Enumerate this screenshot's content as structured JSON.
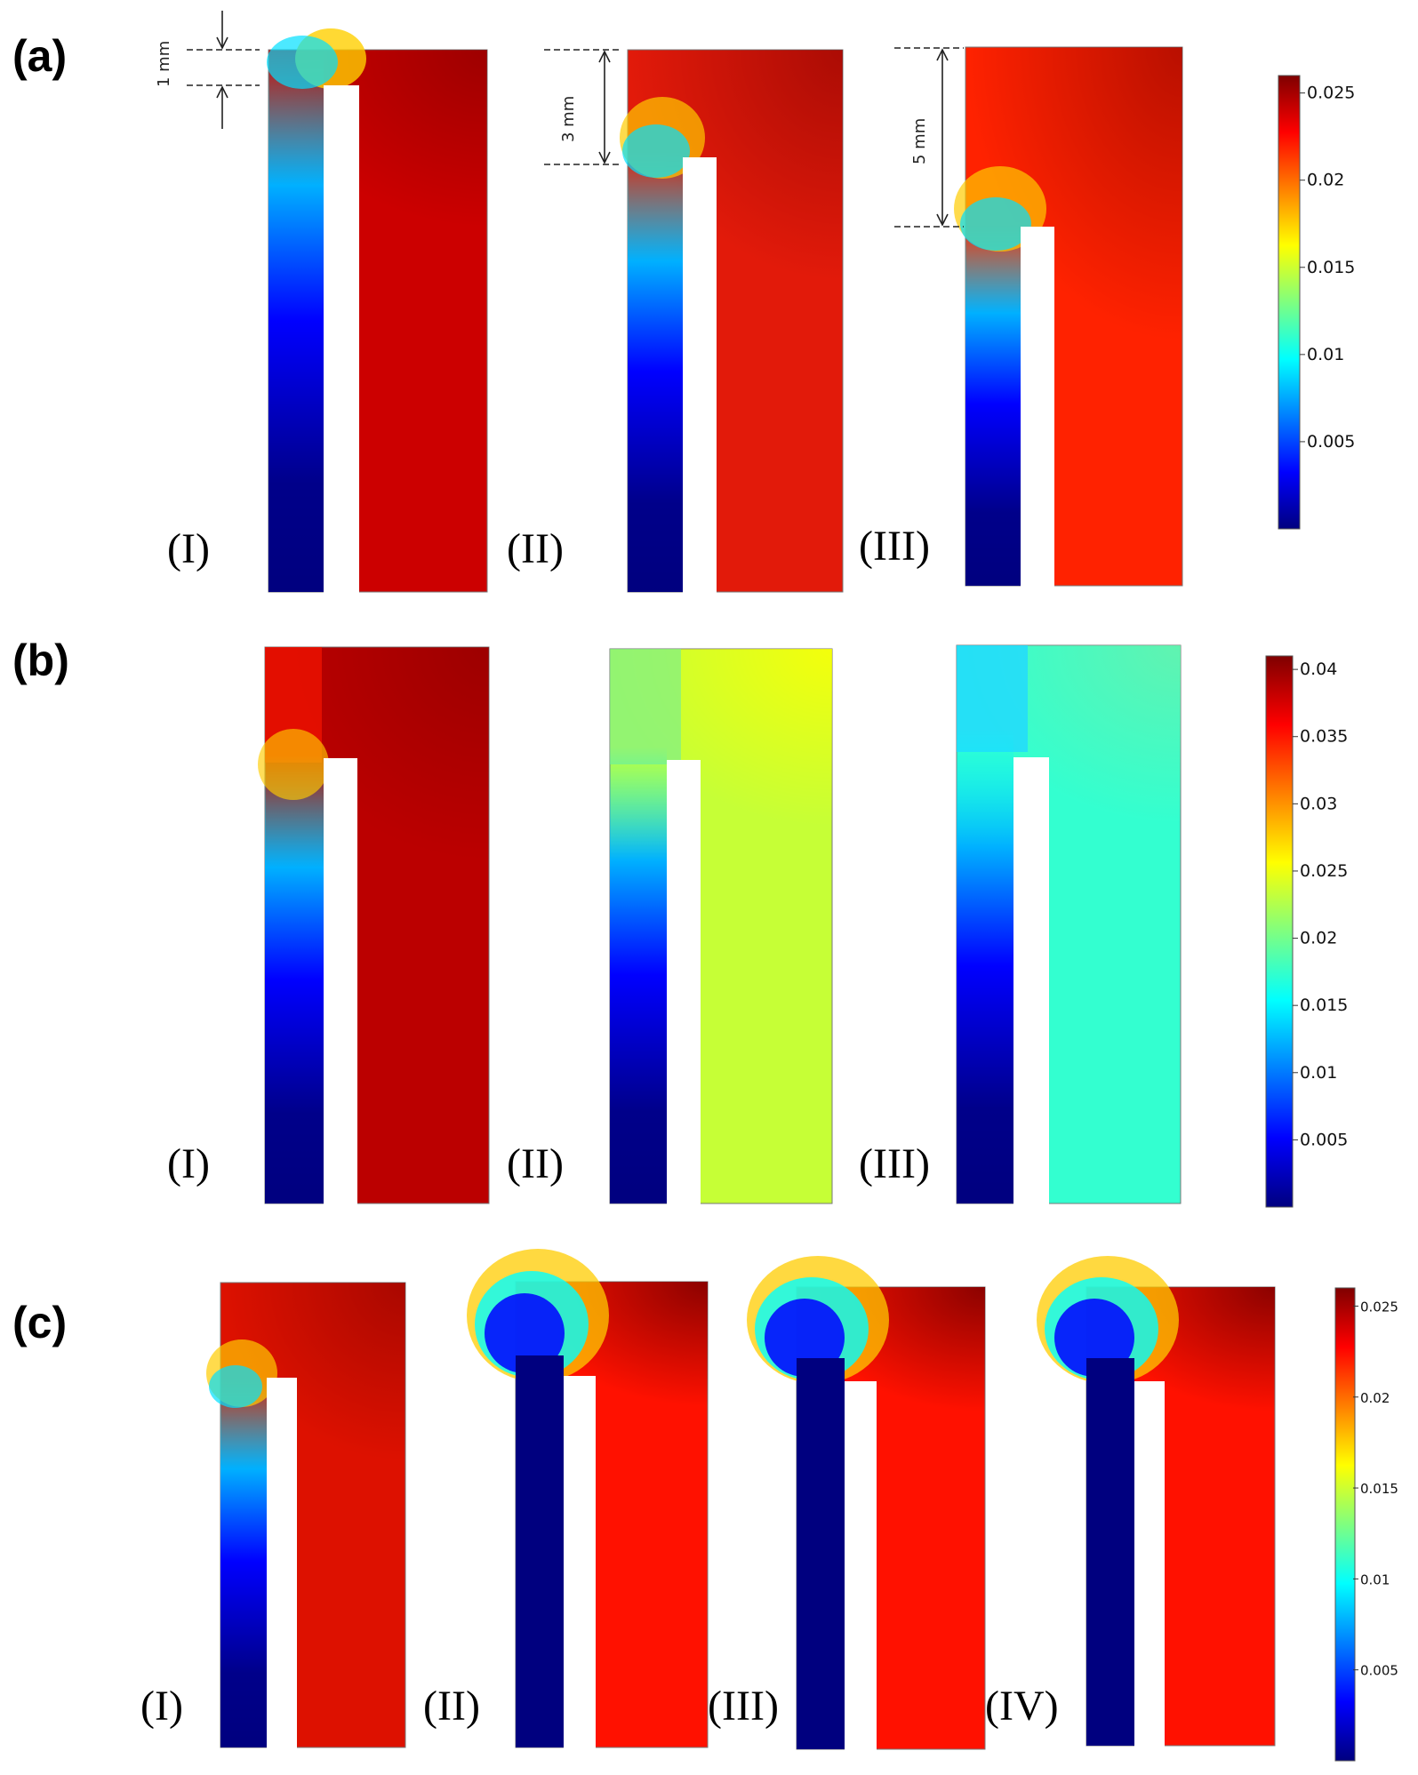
{
  "panels": [
    {
      "label": "(a)",
      "roman": [
        "(I)",
        "(II)",
        "(III)"
      ],
      "dimensions": [
        "1 mm",
        "3 mm",
        "5 mm"
      ],
      "colorbar": {
        "ticks": [
          "0.025",
          "0.02",
          "0.015",
          "0.01",
          "0.005"
        ],
        "range": [
          0,
          0.026
        ]
      }
    },
    {
      "label": "(b)",
      "roman": [
        "(I)",
        "(II)",
        "(III)"
      ],
      "colorbar": {
        "ticks": [
          "0.04",
          "0.035",
          "0.03",
          "0.025",
          "0.02",
          "0.015",
          "0.01",
          "0.005"
        ],
        "range": [
          0,
          0.041
        ]
      }
    },
    {
      "label": "(c)",
      "roman": [
        "(I)",
        "(II)",
        "(III)",
        "(IV)"
      ],
      "colorbar": {
        "ticks": [
          "0.025",
          "0.02",
          "0.015",
          "0.01",
          "0.005"
        ],
        "range": [
          0,
          0.026
        ]
      }
    }
  ],
  "colors": {
    "jet": [
      "#00007f",
      "#0000ff",
      "#00ffff",
      "#ffff00",
      "#ff0000",
      "#7f0000"
    ]
  }
}
